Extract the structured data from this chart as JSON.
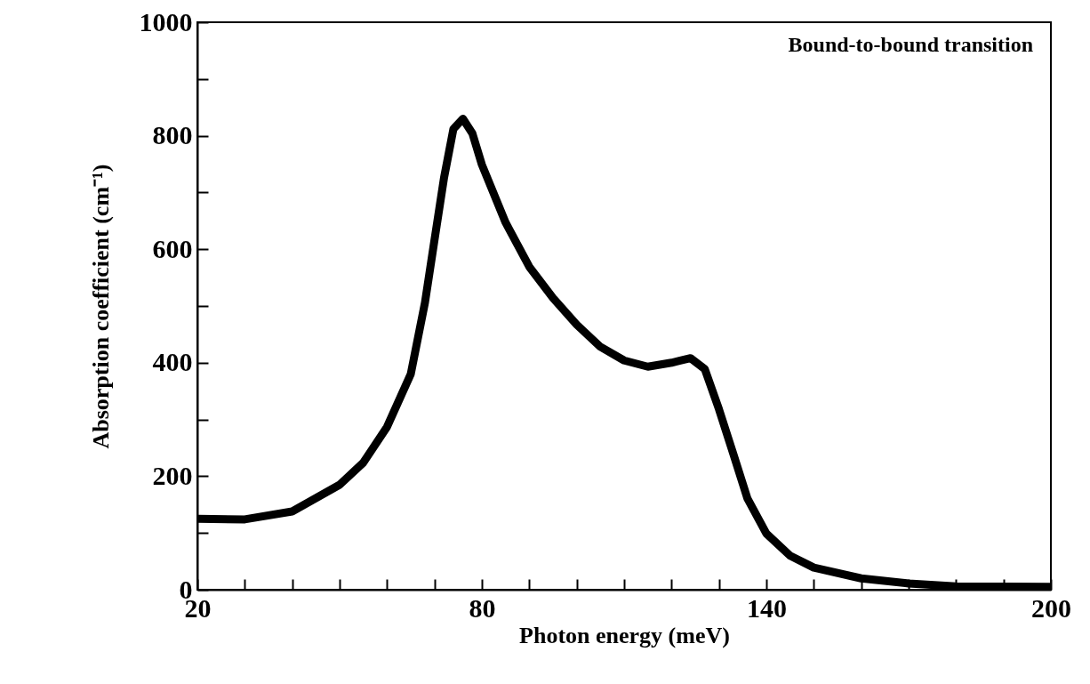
{
  "chart_data": {
    "type": "line",
    "xlabel": "Photon energy (meV)",
    "ylabel": "Absorption coefficient (cm⁻¹)",
    "annotations": [
      "Bound-to-bound transition"
    ],
    "x": [
      20,
      30,
      40,
      50,
      55,
      60,
      65,
      68,
      70,
      72,
      74,
      76,
      78,
      80,
      85,
      90,
      95,
      100,
      105,
      110,
      115,
      120,
      124,
      127,
      130,
      133,
      136,
      140,
      145,
      150,
      160,
      170,
      180,
      200
    ],
    "series": [
      {
        "color": "#000000",
        "values": [
          125,
          124,
          138,
          185,
          224,
          287,
          380,
          506,
          616,
          725,
          812,
          830,
          804,
          749,
          647,
          569,
          514,
          467,
          428,
          404,
          393,
          400,
          408,
          389,
          318,
          240,
          161,
          99,
          60,
          39,
          20,
          11,
          6,
          5
        ]
      }
    ],
    "xlim": [
      20,
      200
    ],
    "xticks": [
      20,
      {
        "value": 30,
        "label": null
      },
      {
        "value": 40,
        "label": null
      },
      {
        "value": 50,
        "label": null
      },
      {
        "value": 60,
        "label": null
      },
      {
        "value": 70,
        "label": null
      },
      80,
      {
        "value": 90,
        "label": null
      },
      {
        "value": 100,
        "label": null
      },
      {
        "value": 110,
        "label": null
      },
      {
        "value": 120,
        "label": null
      },
      {
        "value": 130,
        "label": null
      },
      140,
      {
        "value": 150,
        "label": null
      },
      {
        "value": 160,
        "label": null
      },
      {
        "value": 170,
        "label": null
      },
      {
        "value": 180,
        "label": null
      },
      {
        "value": 190,
        "label": null
      },
      200
    ],
    "ylim": [
      0,
      1000
    ],
    "yticks": [
      0,
      {
        "value": 100,
        "label": null
      },
      200,
      {
        "value": 300,
        "label": null
      },
      400,
      {
        "value": 500,
        "label": null
      },
      600,
      {
        "value": 700,
        "label": null
      },
      800,
      {
        "value": 900,
        "label": null
      },
      1000
    ],
    "grid": false,
    "line_style": "solid"
  }
}
